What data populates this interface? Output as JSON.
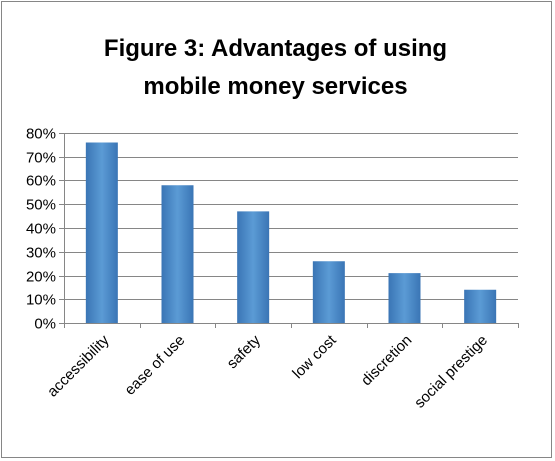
{
  "chart_data": {
    "type": "bar",
    "title_line1": "Figure 3: Advantages of using",
    "title_line2": "mobile money services",
    "categories": [
      "accessibility",
      "ease of use",
      "safety",
      "low cost",
      "discretion",
      "social prestige"
    ],
    "values": [
      0.76,
      0.58,
      0.47,
      0.26,
      0.21,
      0.14
    ],
    "ylim": [
      0,
      0.8
    ],
    "yticks": [
      "0%",
      "10%",
      "20%",
      "30%",
      "40%",
      "50%",
      "60%",
      "70%",
      "80%"
    ],
    "grid": true,
    "legend": "none",
    "bar_color_light": "#5b9bd5",
    "bar_color_dark": "#3a75b5"
  }
}
